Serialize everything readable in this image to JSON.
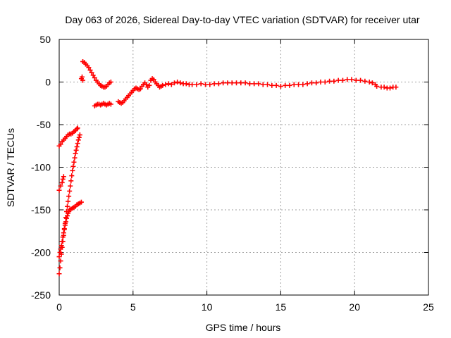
{
  "chart_data": {
    "type": "scatter",
    "title": "Day 063 of 2026, Sidereal Day-to-day VTEC variation (SDTVAR) for receiver utar",
    "xlabel": "GPS time / hours",
    "ylabel": "SDTVAR / TECUs",
    "xlim": [
      0,
      25
    ],
    "ylim": [
      -250,
      50
    ],
    "xticks": [
      0,
      5,
      10,
      15,
      20,
      25
    ],
    "yticks": [
      -250,
      -200,
      -150,
      -100,
      -50,
      0,
      50
    ],
    "grid": true,
    "marker": "+",
    "marker_color": "#ff0000",
    "series": [
      {
        "points": [
          [
            0.0,
            -75
          ],
          [
            0.1,
            -73
          ],
          [
            0.2,
            -70
          ],
          [
            0.3,
            -68
          ],
          [
            0.4,
            -66
          ],
          [
            0.5,
            -64
          ],
          [
            0.6,
            -62
          ],
          [
            0.7,
            -61
          ],
          [
            0.8,
            -61
          ],
          [
            0.9,
            -60
          ],
          [
            1.0,
            -58
          ],
          [
            1.1,
            -57
          ],
          [
            1.2,
            -55
          ],
          [
            1.25,
            -54
          ],
          [
            0.0,
            -127
          ],
          [
            0.1,
            -122
          ],
          [
            0.2,
            -118
          ],
          [
            0.25,
            -114
          ],
          [
            0.3,
            -111
          ],
          [
            0.0,
            -225
          ],
          [
            0.05,
            -218
          ],
          [
            0.1,
            -210
          ],
          [
            0.15,
            -202
          ],
          [
            0.2,
            -194
          ],
          [
            0.25,
            -187
          ],
          [
            0.3,
            -180
          ],
          [
            0.35,
            -173
          ],
          [
            0.4,
            -166
          ],
          [
            0.45,
            -159
          ],
          [
            0.5,
            -152
          ],
          [
            0.55,
            -146
          ],
          [
            0.6,
            -140
          ],
          [
            0.65,
            -134
          ],
          [
            0.7,
            -128
          ],
          [
            0.75,
            -122
          ],
          [
            0.8,
            -116
          ],
          [
            0.85,
            -110
          ],
          [
            0.9,
            -104
          ],
          [
            0.95,
            -99
          ],
          [
            1.0,
            -94
          ],
          [
            1.05,
            -89
          ],
          [
            1.1,
            -84
          ],
          [
            1.15,
            -80
          ],
          [
            1.2,
            -76
          ],
          [
            1.25,
            -72
          ],
          [
            1.3,
            -68
          ],
          [
            1.35,
            -65
          ],
          [
            1.4,
            -62
          ],
          [
            0.0,
            -205
          ],
          [
            0.05,
            -200
          ],
          [
            0.1,
            -196
          ],
          [
            0.15,
            -192
          ],
          [
            0.2,
            -187
          ],
          [
            0.25,
            -182
          ],
          [
            0.3,
            -177
          ],
          [
            0.35,
            -172
          ],
          [
            0.4,
            -168
          ],
          [
            0.45,
            -164
          ],
          [
            0.5,
            -160
          ],
          [
            0.55,
            -157
          ],
          [
            0.6,
            -154
          ],
          [
            0.65,
            -152
          ],
          [
            0.7,
            -150
          ],
          [
            0.8,
            -149
          ],
          [
            0.9,
            -148
          ],
          [
            1.0,
            -147
          ],
          [
            1.1,
            -146
          ],
          [
            1.2,
            -144
          ],
          [
            1.3,
            -143
          ],
          [
            1.4,
            -142
          ],
          [
            1.5,
            -141
          ],
          [
            1.5,
            4
          ],
          [
            1.55,
            6
          ],
          [
            1.6,
            2
          ],
          [
            1.6,
            24
          ],
          [
            1.7,
            23
          ],
          [
            1.8,
            21
          ],
          [
            1.9,
            19
          ],
          [
            2.0,
            17
          ],
          [
            2.1,
            14
          ],
          [
            2.2,
            11
          ],
          [
            2.3,
            8
          ],
          [
            2.4,
            5
          ],
          [
            2.5,
            2
          ],
          [
            2.6,
            0
          ],
          [
            2.7,
            -2
          ],
          [
            2.8,
            -4
          ],
          [
            2.9,
            -5
          ],
          [
            3.0,
            -6
          ],
          [
            3.1,
            -6
          ],
          [
            3.2,
            -5
          ],
          [
            3.3,
            -3
          ],
          [
            3.4,
            -1
          ],
          [
            3.5,
            0
          ],
          [
            2.4,
            -28
          ],
          [
            2.5,
            -27
          ],
          [
            2.6,
            -26
          ],
          [
            2.7,
            -26
          ],
          [
            2.8,
            -27
          ],
          [
            2.9,
            -26
          ],
          [
            3.0,
            -25
          ],
          [
            3.1,
            -26
          ],
          [
            3.2,
            -27
          ],
          [
            3.3,
            -26
          ],
          [
            3.4,
            -25
          ],
          [
            3.5,
            -26
          ],
          [
            4.0,
            -23
          ],
          [
            4.1,
            -24
          ],
          [
            4.2,
            -25
          ],
          [
            4.3,
            -24
          ],
          [
            4.4,
            -22
          ],
          [
            4.5,
            -20
          ],
          [
            4.6,
            -18
          ],
          [
            4.7,
            -16
          ],
          [
            4.8,
            -14
          ],
          [
            4.9,
            -12
          ],
          [
            5.0,
            -10
          ],
          [
            5.1,
            -8
          ],
          [
            5.2,
            -7
          ],
          [
            5.3,
            -8
          ],
          [
            5.4,
            -9
          ],
          [
            5.5,
            -8
          ],
          [
            5.6,
            -5
          ],
          [
            5.7,
            -3
          ],
          [
            5.8,
            -1
          ],
          [
            5.9,
            -3
          ],
          [
            6.0,
            -6
          ],
          [
            6.1,
            -4
          ],
          [
            6.2,
            2
          ],
          [
            6.3,
            4
          ],
          [
            6.4,
            3
          ],
          [
            6.5,
            0
          ],
          [
            6.6,
            -2
          ],
          [
            6.7,
            -4
          ],
          [
            6.8,
            -6
          ],
          [
            6.9,
            -5
          ],
          [
            7.0,
            -4
          ],
          [
            7.2,
            -3
          ],
          [
            7.4,
            -2
          ],
          [
            7.6,
            -3
          ],
          [
            7.8,
            -1
          ],
          [
            8.0,
            0
          ],
          [
            8.2,
            -1
          ],
          [
            8.4,
            -2
          ],
          [
            8.6,
            -2
          ],
          [
            8.8,
            -3
          ],
          [
            9.0,
            -3
          ],
          [
            9.3,
            -3
          ],
          [
            9.6,
            -2
          ],
          [
            9.9,
            -3
          ],
          [
            10.2,
            -3
          ],
          [
            10.5,
            -2
          ],
          [
            10.8,
            -2
          ],
          [
            11.1,
            -1
          ],
          [
            11.4,
            -1
          ],
          [
            11.7,
            -1
          ],
          [
            12.0,
            -1
          ],
          [
            12.3,
            -1
          ],
          [
            12.6,
            -1
          ],
          [
            12.9,
            -2
          ],
          [
            13.2,
            -2
          ],
          [
            13.5,
            -2
          ],
          [
            13.8,
            -3
          ],
          [
            14.1,
            -3
          ],
          [
            14.4,
            -4
          ],
          [
            14.7,
            -4
          ],
          [
            15.0,
            -5
          ],
          [
            15.3,
            -4
          ],
          [
            15.6,
            -4
          ],
          [
            15.9,
            -3
          ],
          [
            16.2,
            -3
          ],
          [
            16.5,
            -3
          ],
          [
            16.8,
            -2
          ],
          [
            17.1,
            -1
          ],
          [
            17.4,
            -1
          ],
          [
            17.7,
            0
          ],
          [
            18.0,
            0
          ],
          [
            18.3,
            1
          ],
          [
            18.6,
            1
          ],
          [
            18.9,
            2
          ],
          [
            19.2,
            2
          ],
          [
            19.5,
            3
          ],
          [
            19.8,
            3
          ],
          [
            20.1,
            2
          ],
          [
            20.4,
            2
          ],
          [
            20.7,
            1
          ],
          [
            21.0,
            0
          ],
          [
            21.2,
            -1
          ],
          [
            21.4,
            -3
          ],
          [
            21.5,
            -5
          ],
          [
            21.8,
            -6
          ],
          [
            22.0,
            -6
          ],
          [
            22.2,
            -7
          ],
          [
            22.4,
            -7
          ],
          [
            22.6,
            -6
          ],
          [
            22.8,
            -6
          ]
        ]
      }
    ]
  }
}
